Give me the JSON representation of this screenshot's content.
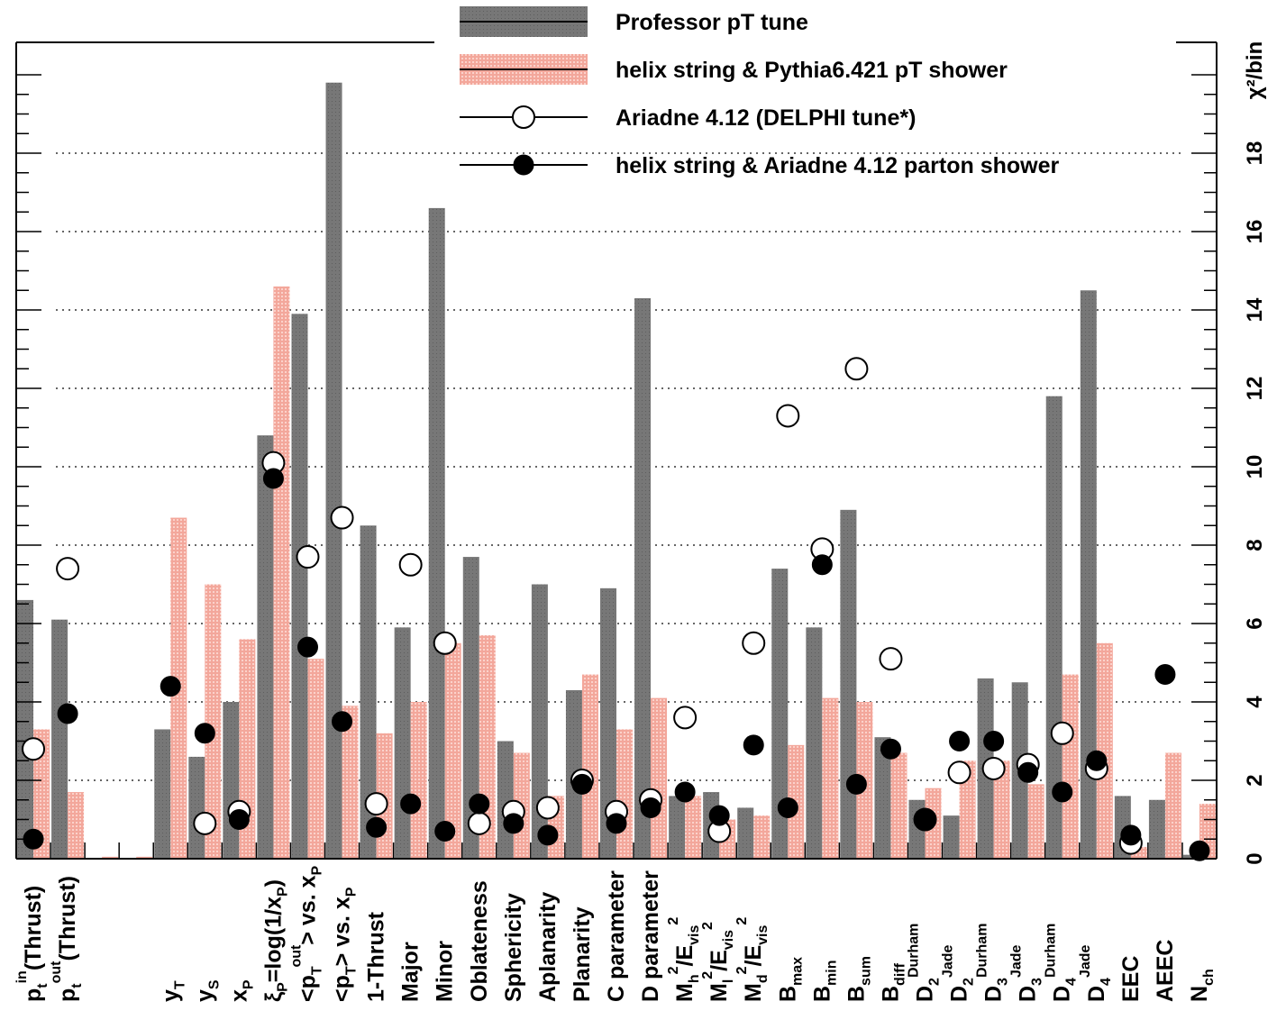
{
  "chart_data": {
    "type": "bar",
    "ylabel": "χ²/bin",
    "ylim": [
      0,
      20
    ],
    "yticks": [
      0,
      2,
      4,
      6,
      8,
      10,
      12,
      14,
      16,
      18
    ],
    "legend_position": "top-center",
    "categories": [
      "pt^in (Thrust)",
      "pt^out(Thrust)",
      "",
      "",
      "yT",
      "yS",
      "xP",
      "ξp=log(1/xp)",
      "<pT^out> vs. xp",
      "<pT> vs. xp",
      "1-Thrust",
      "Major",
      "Minor",
      "Oblateness",
      "Sphericity",
      "Aplanarity",
      "Planarity",
      "C parameter",
      "D parameter",
      "Mh²/Evis²",
      "Ml²/Evis²",
      "Md²/Evis²",
      "Bmax",
      "Bmin",
      "Bsum",
      "Bdiff",
      "D2^Durham",
      "D2^Jade",
      "D3^Durham",
      "D3^Jade",
      "D4^Durham",
      "D4^Jade",
      "EEC",
      "AEEC",
      "Nch"
    ],
    "category_labels": [
      {
        "main": "p",
        "sub": "t",
        "sup": "in",
        "tail": "(Thrust)"
      },
      {
        "main": "p",
        "sub": "t",
        "sup": "out",
        "tail": "(Thrust)"
      },
      {
        "main": ""
      },
      {
        "main": ""
      },
      {
        "main": "y",
        "sub": "T"
      },
      {
        "main": "y",
        "sub": "S"
      },
      {
        "main": "x",
        "sub": "P"
      },
      {
        "main": "ξ",
        "sub": "P",
        "tail": "=log(1/x",
        "sub2": "P",
        "tail2": ")"
      },
      {
        "main": "<p",
        "sub": "T",
        "sup": "out",
        "tail": "> vs. x",
        "sub2": "P"
      },
      {
        "main": "<p",
        "sub": "T",
        "tail": "> vs. x",
        "sub2": "P"
      },
      {
        "main": "1-Thrust"
      },
      {
        "main": "Major"
      },
      {
        "main": "Minor"
      },
      {
        "main": "Oblateness"
      },
      {
        "main": "Sphericity"
      },
      {
        "main": "Aplanarity"
      },
      {
        "main": "Planarity"
      },
      {
        "main": "C parameter"
      },
      {
        "main": "D parameter"
      },
      {
        "main": "M",
        "sub": "h",
        "sup": "2",
        "tail": "/E",
        "sub2": "vis",
        "sup2": "2"
      },
      {
        "main": "M",
        "sub": "l",
        "sup": "2",
        "tail": "/E",
        "sub2": "vis",
        "sup2": "2"
      },
      {
        "main": "M",
        "sub": "d",
        "sup": "2",
        "tail": "/E",
        "sub2": "vis",
        "sup2": "2"
      },
      {
        "main": "B",
        "sub": "max"
      },
      {
        "main": "B",
        "sub": "min"
      },
      {
        "main": "B",
        "sub": "sum"
      },
      {
        "main": "B",
        "sub": "diff"
      },
      {
        "main": "D",
        "sub": "2",
        "sup": "Durham"
      },
      {
        "main": "D",
        "sub": "2",
        "sup": "Jade"
      },
      {
        "main": "D",
        "sub": "3",
        "sup": "Durham"
      },
      {
        "main": "D",
        "sub": "3",
        "sup": "Jade"
      },
      {
        "main": "D",
        "sub": "4",
        "sup": "Durham"
      },
      {
        "main": "D",
        "sub": "4",
        "sup": "Jade"
      },
      {
        "main": "EEC"
      },
      {
        "main": "AEEC"
      },
      {
        "main": "N",
        "sub": "ch"
      }
    ],
    "series": [
      {
        "name": "Professor pT tune",
        "kind": "bar",
        "color": "#777777",
        "values": [
          6.6,
          6.1,
          0,
          0,
          3.3,
          2.6,
          4.0,
          10.8,
          13.9,
          19.8,
          8.5,
          5.9,
          16.6,
          7.7,
          3.0,
          7.0,
          4.3,
          6.9,
          14.3,
          1.6,
          1.7,
          1.3,
          7.4,
          5.9,
          8.9,
          3.1,
          1.5,
          1.1,
          4.6,
          4.5,
          11.8,
          14.5,
          1.6,
          1.5,
          0.1
        ]
      },
      {
        "name": "helix string & Pythia6.421 pT shower",
        "kind": "bar",
        "color": "#f3a79b",
        "values": [
          3.3,
          1.7,
          0.05,
          0.05,
          8.7,
          7.0,
          5.6,
          14.6,
          5.1,
          3.9,
          3.2,
          4.0,
          5.5,
          5.7,
          2.7,
          1.6,
          4.7,
          3.3,
          4.1,
          1.6,
          1.0,
          1.1,
          2.9,
          4.1,
          4.0,
          2.7,
          1.8,
          2.5,
          2.5,
          1.9,
          4.7,
          5.5,
          0.3,
          2.7,
          1.4
        ]
      },
      {
        "name": "Ariadne 4.12 (DELPHI tune*)",
        "kind": "marker-open",
        "values": [
          2.8,
          7.4,
          null,
          null,
          null,
          0.9,
          1.2,
          10.1,
          7.7,
          8.7,
          1.4,
          7.5,
          5.5,
          0.9,
          1.2,
          1.3,
          2.0,
          1.2,
          1.5,
          3.6,
          0.7,
          5.5,
          11.3,
          7.9,
          12.5,
          5.1,
          1.0,
          2.2,
          2.3,
          2.4,
          3.2,
          2.3,
          0.4,
          null,
          null
        ]
      },
      {
        "name": "helix string & Ariadne 4.12 parton shower",
        "kind": "marker-filled",
        "values": [
          0.5,
          3.7,
          null,
          null,
          4.4,
          3.2,
          1.0,
          9.7,
          5.4,
          3.5,
          0.8,
          1.4,
          0.7,
          1.4,
          0.9,
          0.6,
          1.9,
          0.9,
          1.3,
          1.7,
          1.1,
          2.9,
          1.3,
          7.5,
          1.9,
          2.8,
          1.0,
          3.0,
          3.0,
          2.2,
          1.7,
          2.5,
          0.6,
          4.7,
          0.2
        ]
      }
    ]
  }
}
